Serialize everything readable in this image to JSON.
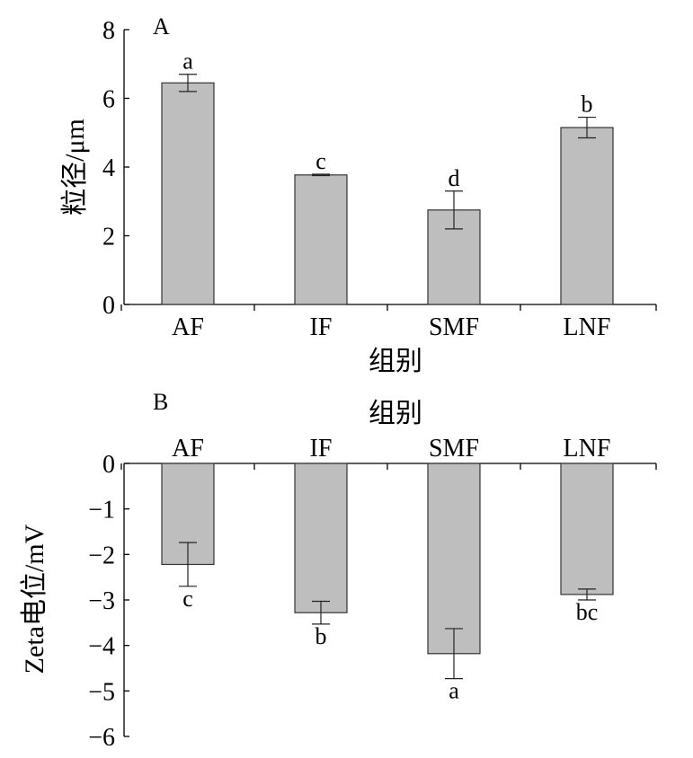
{
  "chart_data": [
    {
      "type": "bar",
      "panel_label": "A",
      "categories": [
        "AF",
        "IF",
        "SMF",
        "LNF"
      ],
      "values": [
        6.45,
        3.77,
        2.75,
        5.15
      ],
      "errors": [
        0.25,
        0.02,
        0.55,
        0.3
      ],
      "significance": [
        "a",
        "c",
        "d",
        "b"
      ],
      "xlabel": "组别",
      "ylabel": "粒径/μm",
      "ylim": [
        0,
        8
      ],
      "yticks": [
        "0",
        "2",
        "4",
        "6",
        "8"
      ],
      "bar_color": "#bebebe",
      "grid": false,
      "x_axis_position": "bottom"
    },
    {
      "type": "bar",
      "panel_label": "B",
      "categories": [
        "AF",
        "IF",
        "SMF",
        "LNF"
      ],
      "values": [
        -2.22,
        -3.28,
        -4.18,
        -2.88
      ],
      "errors": [
        0.48,
        0.25,
        0.55,
        0.12
      ],
      "significance": [
        "c",
        "b",
        "a",
        "bc"
      ],
      "xlabel": "组别",
      "ylabel": "Zeta电位/mV",
      "ylim": [
        -6,
        0
      ],
      "yticks": [
        "0",
        "−1",
        "−2",
        "−3",
        "−4",
        "−5",
        "−6"
      ],
      "bar_color": "#bebebe",
      "grid": false,
      "x_axis_position": "top"
    }
  ]
}
